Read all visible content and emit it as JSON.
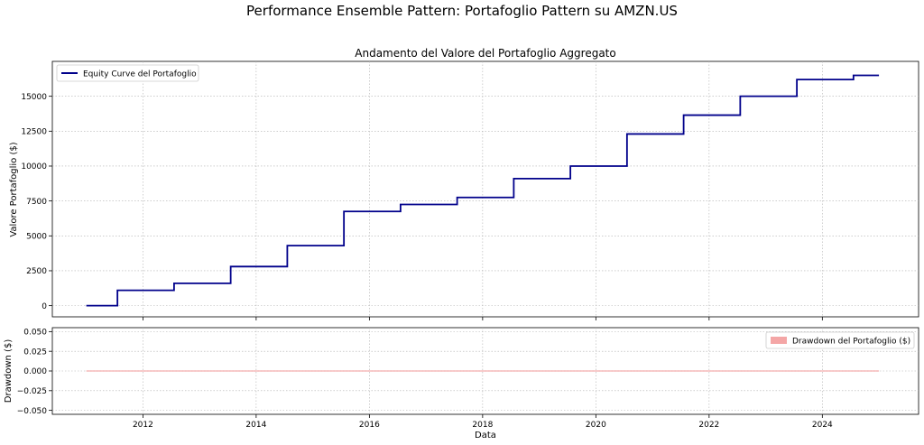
{
  "figure": {
    "suptitle": "Performance Ensemble Pattern: Portafoglio Pattern su AMZN.US"
  },
  "chart_data": [
    {
      "type": "line",
      "title": "Andamento del Valore del Portafoglio Aggregato",
      "xlabel": "",
      "ylabel": "Valore Portafoglio ($)",
      "xlim": [
        2010.4,
        2025.7
      ],
      "ylim": [
        -800,
        17500
      ],
      "yticks": [
        0,
        2500,
        5000,
        7500,
        10000,
        12500,
        15000
      ],
      "ytick_labels": [
        "0",
        "2500",
        "5000",
        "7500",
        "10000",
        "12500",
        "15000"
      ],
      "xticks": [
        2012,
        2014,
        2016,
        2018,
        2020,
        2022,
        2024
      ],
      "grid": true,
      "legend": "top-left",
      "series": [
        {
          "name": "Equity Curve del Portafoglio",
          "color": "#00008b",
          "step": "post",
          "x": [
            2011.0,
            2011.55,
            2012.55,
            2013.55,
            2014.55,
            2015.55,
            2016.55,
            2017.55,
            2018.55,
            2019.55,
            2020.55,
            2021.55,
            2022.55,
            2023.55,
            2024.55,
            2025.0
          ],
          "y": [
            0,
            1100,
            1600,
            2800,
            4300,
            6750,
            7250,
            7750,
            9100,
            10000,
            12300,
            13650,
            15000,
            16200,
            16500,
            16500
          ]
        }
      ]
    },
    {
      "type": "area",
      "title": "",
      "xlabel": "Data",
      "ylabel": "Drawdown ($)",
      "xlim": [
        2010.4,
        2025.7
      ],
      "ylim": [
        -0.055,
        0.055
      ],
      "yticks": [
        0.05,
        0.025,
        0.0,
        -0.025,
        -0.05
      ],
      "ytick_labels": [
        "0.050",
        "0.025",
        "0.000",
        "−0.025",
        "−0.050"
      ],
      "xticks": [
        2012,
        2014,
        2016,
        2018,
        2020,
        2022,
        2024
      ],
      "xtick_labels": [
        "2012",
        "2014",
        "2016",
        "2018",
        "2020",
        "2022",
        "2024"
      ],
      "grid": true,
      "legend": "top-right",
      "series": [
        {
          "name": "Drawdown del Portafoglio ($)",
          "color": "#f08080",
          "x": [
            2011.0,
            2025.0
          ],
          "y": [
            0,
            0
          ]
        }
      ]
    }
  ]
}
